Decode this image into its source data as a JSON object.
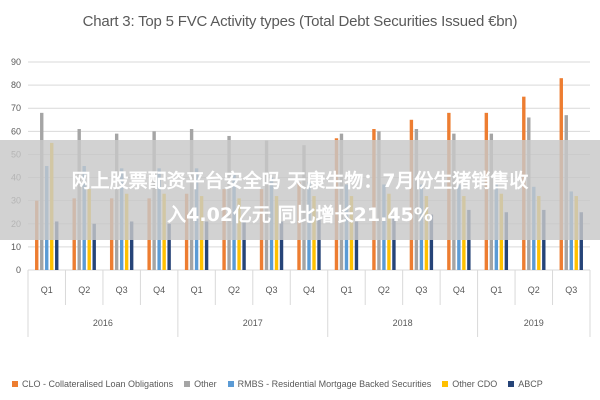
{
  "chart_data": {
    "type": "bar",
    "title": "Chart 3: Top 5 FVC Activity types (Total Debt Securities Issued €bn)",
    "ylim": [
      0,
      90
    ],
    "yticks": [
      "0",
      "10",
      "20",
      "30",
      "40",
      "50",
      "60",
      "70",
      "80",
      "90"
    ],
    "grid": true,
    "legend_position": "bottom",
    "categories": [
      "Q1",
      "Q2",
      "Q3",
      "Q4",
      "Q1",
      "Q2",
      "Q3",
      "Q4",
      "Q1",
      "Q2",
      "Q3",
      "Q4",
      "Q1",
      "Q2",
      "Q3"
    ],
    "groups": [
      {
        "label": "2016",
        "count": 4
      },
      {
        "label": "2017",
        "count": 4
      },
      {
        "label": "2018",
        "count": 4
      },
      {
        "label": "2019",
        "count": 3
      }
    ],
    "series": [
      {
        "name": "CLO - Collateralised Loan Obligations",
        "color": "#ED7D31",
        "values": [
          30,
          31,
          31,
          31,
          33,
          35,
          35,
          38,
          57,
          61,
          65,
          68,
          68,
          75,
          83
        ]
      },
      {
        "name": "Other",
        "color": "#A5A5A5",
        "values": [
          68,
          61,
          59,
          60,
          61,
          58,
          56,
          54,
          59,
          60,
          61,
          59,
          59,
          66,
          67
        ]
      },
      {
        "name": "RMBS - Residential Mortgage Backed Securities",
        "color": "#5B9BD5",
        "values": [
          45,
          45,
          44,
          44,
          44,
          42,
          40,
          38,
          37,
          37,
          37,
          37,
          37,
          36,
          34
        ]
      },
      {
        "name": "Other CDO",
        "color": "#FFC000",
        "values": [
          55,
          35,
          33,
          33,
          32,
          31,
          32,
          32,
          32,
          33,
          32,
          32,
          33,
          32,
          32
        ]
      },
      {
        "name": "ABCP",
        "color": "#264478",
        "values": [
          21,
          20,
          21,
          20,
          21,
          21,
          21,
          22,
          21,
          23,
          24,
          26,
          25,
          26,
          25
        ]
      }
    ]
  },
  "overlay": {
    "line1": "网上股票配资平台安全吗 天康生物：7月份生猪销售收",
    "line2": "入4.02亿元 同比增长21.45%"
  }
}
